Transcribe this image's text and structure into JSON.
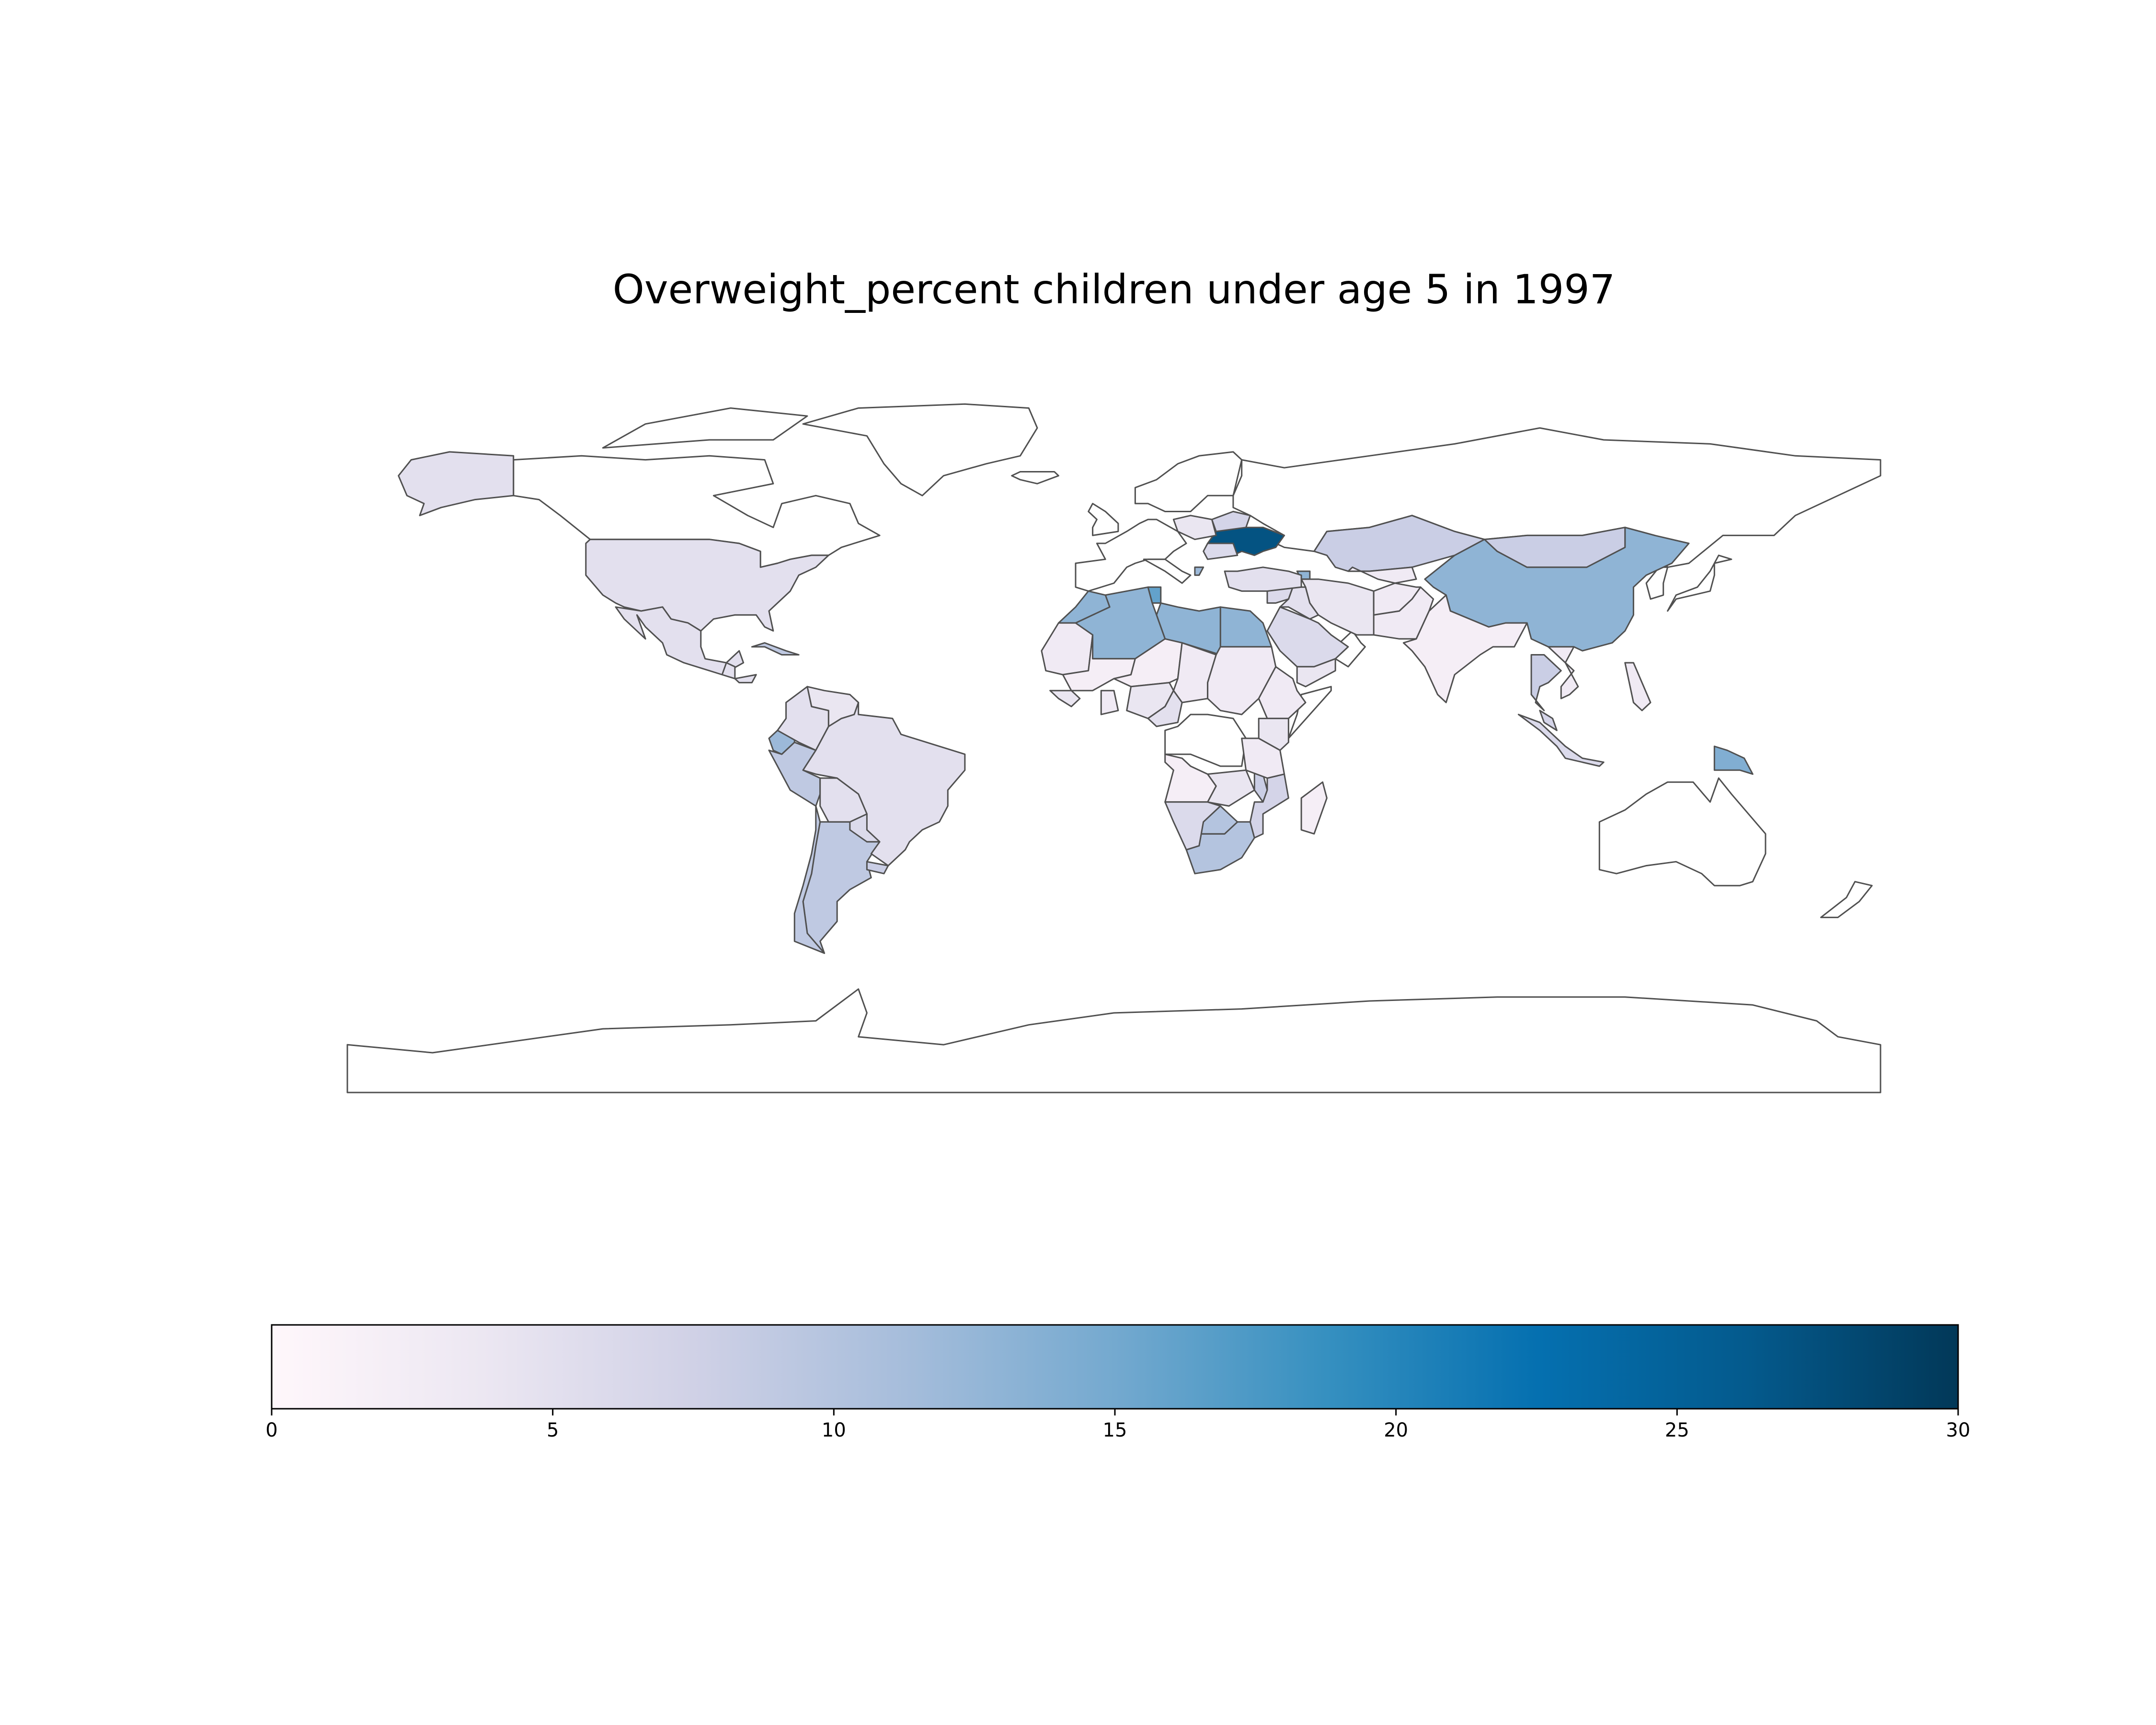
{
  "title": "Overweight_percent children under age 5 in 1997",
  "colormap": {
    "name": "PuBu",
    "stops": [
      "#fff7fb",
      "#ece7f2",
      "#d0d1e6",
      "#a6bddb",
      "#74a9cf",
      "#3690c0",
      "#0570b0",
      "#045a8d",
      "#023858"
    ]
  },
  "colorbar": {
    "min": 0,
    "max": 30,
    "orientation": "horizontal",
    "ticks": [
      "0",
      "5",
      "10",
      "15",
      "20",
      "25",
      "30"
    ]
  },
  "map": {
    "projection": "equirectangular",
    "edge_color": "#505050",
    "no_data_fill": "#ffffff"
  },
  "chart_data": {
    "type": "choropleth",
    "title": "Overweight_percent children under age 5 in 1997",
    "value_range": [
      0,
      30
    ],
    "regions": [
      {
        "name": "Ukraine",
        "value": 27
      },
      {
        "name": "China",
        "value": 13
      },
      {
        "name": "Egypt",
        "value": 13
      },
      {
        "name": "Libya",
        "value": 13
      },
      {
        "name": "Algeria",
        "value": 13
      },
      {
        "name": "Morocco",
        "value": 13
      },
      {
        "name": "Tunisia",
        "value": 16
      },
      {
        "name": "Papua New Guinea",
        "value": 14
      },
      {
        "name": "Armenia",
        "value": 13
      },
      {
        "name": "Albania",
        "value": 12
      },
      {
        "name": "Ecuador",
        "value": 12
      },
      {
        "name": "South Africa",
        "value": 10
      },
      {
        "name": "Botswana",
        "value": 10
      },
      {
        "name": "Argentina",
        "value": 9
      },
      {
        "name": "Peru",
        "value": 9
      },
      {
        "name": "Chile",
        "value": 9
      },
      {
        "name": "Kazakhstan",
        "value": 8
      },
      {
        "name": "Mongolia",
        "value": 8
      },
      {
        "name": "Thailand",
        "value": 8
      },
      {
        "name": "Malaysia",
        "value": 7
      },
      {
        "name": "Indonesia",
        "value": 6
      },
      {
        "name": "Malawi",
        "value": 8
      },
      {
        "name": "Mozambique",
        "value": 7
      },
      {
        "name": "Uruguay",
        "value": 8
      },
      {
        "name": "Paraguay",
        "value": 6
      },
      {
        "name": "Colombia",
        "value": 5
      },
      {
        "name": "Belarus",
        "value": 7
      },
      {
        "name": "Romania",
        "value": 6
      },
      {
        "name": "Saudi Arabia",
        "value": 6
      },
      {
        "name": "Iraq",
        "value": 5
      },
      {
        "name": "Syria",
        "value": 6
      },
      {
        "name": "Iran",
        "value": 4
      },
      {
        "name": "Turkey",
        "value": 5
      },
      {
        "name": "United States",
        "value": 5
      },
      {
        "name": "Brazil",
        "value": 5
      },
      {
        "name": "Mexico",
        "value": 5
      },
      {
        "name": "Bolivia",
        "value": 5
      },
      {
        "name": "Venezuela",
        "value": 4
      },
      {
        "name": "Alaska (United States)",
        "value": 5
      },
      {
        "name": "Poland",
        "value": 4
      },
      {
        "name": "Mauritania",
        "value": 3
      },
      {
        "name": "Mali",
        "value": 2
      },
      {
        "name": "Niger",
        "value": 2
      },
      {
        "name": "Chad",
        "value": 3
      },
      {
        "name": "Sudan",
        "value": 3
      },
      {
        "name": "Nigeria",
        "value": 4
      },
      {
        "name": "Cameroon",
        "value": 5
      },
      {
        "name": "Ethiopia",
        "value": 3
      },
      {
        "name": "Kenya",
        "value": 4
      },
      {
        "name": "Tanzania",
        "value": 3
      },
      {
        "name": "Angola",
        "value": 2
      },
      {
        "name": "Zambia",
        "value": 4
      },
      {
        "name": "Namibia",
        "value": 6
      },
      {
        "name": "Madagascar",
        "value": 2
      },
      {
        "name": "Yemen",
        "value": 4
      },
      {
        "name": "Pakistan",
        "value": 3
      },
      {
        "name": "India",
        "value": 2
      },
      {
        "name": "Afghanistan",
        "value": 3
      },
      {
        "name": "Uzbekistan",
        "value": 3
      },
      {
        "name": "Vietnam",
        "value": 3
      },
      {
        "name": "Philippines",
        "value": 3
      },
      {
        "name": "Guatemala",
        "value": 5
      },
      {
        "name": "Honduras",
        "value": 5
      },
      {
        "name": "Cuba",
        "value": 9
      },
      {
        "name": "Guinea",
        "value": 4
      },
      {
        "name": "Ghana",
        "value": 3
      }
    ]
  }
}
